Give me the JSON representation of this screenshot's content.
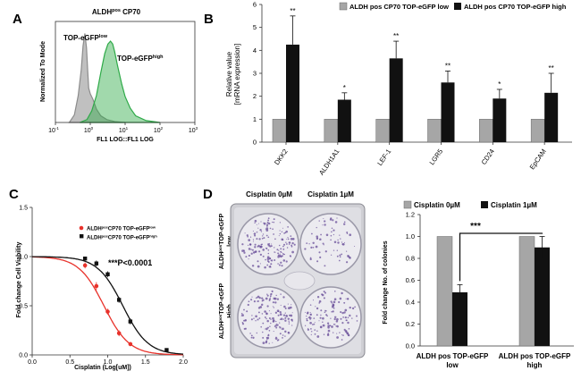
{
  "panels": {
    "a": "A",
    "b": "B",
    "c": "C",
    "d": "D"
  },
  "chart_data": [
    {
      "type": "area",
      "title": "ALDH",
      "title_sup": "pos",
      "title_rest": " CP70",
      "xlabel": "FL1 LOG::FL1 LOG",
      "ylabel": "Normalized To Mode",
      "x_scale": "log",
      "xlim": [
        0.1,
        1000
      ],
      "x_ticks": [
        "10",
        "10",
        "10",
        "10",
        "10"
      ],
      "x_tick_exps": [
        "-1",
        "0",
        "1",
        "2",
        "3"
      ],
      "x_tick_values": [
        0.1,
        1,
        10,
        100,
        1000
      ],
      "ylim": [
        0,
        100
      ],
      "series": [
        {
          "name": "TOP-eGFP",
          "name_sup": "low",
          "color": "#8c8c8c",
          "x": [
            0.25,
            0.35,
            0.45,
            0.55,
            0.62,
            0.7,
            0.78,
            0.85,
            0.9,
            1.0,
            1.2,
            1.5,
            2.0,
            3.0,
            5.0,
            10
          ],
          "y": [
            0,
            8,
            28,
            55,
            80,
            93,
            78,
            52,
            36,
            30,
            24,
            14,
            7,
            3,
            1,
            0
          ]
        },
        {
          "name": "TOP-eGFP",
          "name_sup": "high",
          "color": "#2eaa48",
          "x": [
            0.5,
            0.8,
            1.1,
            1.5,
            2.0,
            2.6,
            3.2,
            3.8,
            4.4,
            5.0,
            6.0,
            8.0,
            10,
            14,
            20,
            40,
            100
          ],
          "y": [
            0,
            3,
            12,
            28,
            52,
            72,
            82,
            85,
            82,
            74,
            60,
            40,
            27,
            15,
            7,
            2,
            0
          ]
        }
      ]
    },
    {
      "type": "bar",
      "categories": [
        "DKK2",
        "ALDH1A1",
        "LEF-1",
        "LGR5",
        "CD24",
        "EpCAM"
      ],
      "ylabel": "Relative value",
      "ylabel2": "[mRNA expression]",
      "ylim": [
        0,
        6
      ],
      "yticks": [
        "0",
        "1",
        "2",
        "3",
        "4",
        "5",
        "6"
      ],
      "series": [
        {
          "name": "ALDH pos CP70 TOP-eGFP low",
          "color": "#a6a6a6",
          "values": [
            1,
            1,
            1,
            1,
            1,
            1
          ],
          "errors": [
            0,
            0,
            0,
            0,
            0,
            0
          ]
        },
        {
          "name": "ALDH pos CP70 TOP-eGFP high",
          "color": "#111111",
          "values": [
            4.25,
            1.85,
            3.65,
            2.6,
            1.9,
            2.15
          ],
          "errors": [
            1.25,
            0.3,
            0.75,
            0.5,
            0.4,
            0.85
          ]
        }
      ],
      "significance": [
        "**",
        "*",
        "**",
        "**",
        "*",
        "**"
      ]
    },
    {
      "type": "line",
      "xlabel": "Cisplatin (Log[uM])",
      "ylabel": "Fold change Cell Viability",
      "xlim": [
        0,
        2
      ],
      "ylim": [
        0,
        1.5
      ],
      "xticks": [
        "0.0",
        "0.5",
        "1.0",
        "1.5",
        "2.0"
      ],
      "yticks": [
        "0.0",
        "0.5",
        "1.0",
        "1.5"
      ],
      "annotation": "***P<0.0001",
      "series": [
        {
          "name": "ALDH",
          "name_sup": "pos",
          "name_mid": "CP70 TOP-eGFP",
          "name_sup2": "low",
          "color": "#e8322b",
          "points": [
            {
              "x": 0.7,
              "y": 0.91
            },
            {
              "x": 0.85,
              "y": 0.7
            },
            {
              "x": 1.0,
              "y": 0.44
            },
            {
              "x": 1.15,
              "y": 0.22
            },
            {
              "x": 1.3,
              "y": 0.11
            }
          ],
          "errors": [
            0.03,
            0.04,
            0.03,
            0.03,
            0.02
          ],
          "curve": {
            "top": 1.0,
            "bottom": 0.0,
            "logIC50": 0.95,
            "hill": 2.6
          }
        },
        {
          "name": "ALDH",
          "name_sup": "pos",
          "name_mid": "CP70 TOP-eGFP",
          "name_sup2": "high",
          "color": "#111111",
          "points": [
            {
              "x": 0.7,
              "y": 0.98
            },
            {
              "x": 0.85,
              "y": 0.93
            },
            {
              "x": 1.0,
              "y": 0.82
            },
            {
              "x": 1.15,
              "y": 0.56
            },
            {
              "x": 1.3,
              "y": 0.34
            },
            {
              "x": 1.78,
              "y": 0.05
            }
          ],
          "errors": [
            0.02,
            0.03,
            0.03,
            0.03,
            0.03,
            0.01
          ],
          "curve": {
            "top": 1.0,
            "bottom": 0.0,
            "logIC50": 1.2,
            "hill": 2.6
          }
        }
      ]
    },
    {
      "type": "bar",
      "categories": [
        "ALDH pos TOP-eGFP low",
        "ALDH pos TOP-eGFP high"
      ],
      "categories_lines": [
        [
          "ALDH pos TOP-eGFP",
          "low"
        ],
        [
          "ALDH pos TOP-eGFP",
          "high"
        ]
      ],
      "ylabel": "Fold change No. of colonies",
      "ylim": [
        0,
        1.2
      ],
      "yticks": [
        "0.0",
        "0.2",
        "0.4",
        "0.6",
        "0.8",
        "1.0",
        "1.2"
      ],
      "series": [
        {
          "name": "Cisplatin 0µM",
          "color": "#a6a6a6",
          "values": [
            1.0,
            1.0
          ],
          "errors": [
            0,
            0
          ]
        },
        {
          "name": "Cisplatin 1µM",
          "color": "#111111",
          "values": [
            0.49,
            0.9
          ],
          "errors": [
            0.07,
            0.1
          ]
        }
      ],
      "annotation": "***"
    }
  ],
  "plate_image": {
    "col_labels": [
      "Cisplatin 0µM",
      "Cisplatin 1µM"
    ],
    "row_labels": [
      {
        "pre": "ALDH",
        "sup": "pos",
        "post": "TOP-eGFP",
        "line2": "low"
      },
      {
        "pre": "ALDH",
        "sup": "pos",
        "post": "TOP-eGFP",
        "line2": "High"
      }
    ]
  }
}
